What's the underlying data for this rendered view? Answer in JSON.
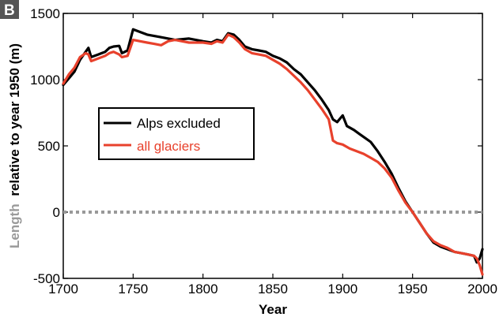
{
  "chart_data": {
    "type": "line",
    "panel_label": "B",
    "title": "",
    "xlabel": "Year",
    "ylabel_light": "Length",
    "ylabel_bold": "relative to year 1950 (m)",
    "xlim": [
      1700,
      2000
    ],
    "ylim": [
      -500,
      1500
    ],
    "xticks": [
      "1700",
      "1750",
      "1800",
      "1850",
      "1900",
      "1950",
      "2000"
    ],
    "yticks": [
      "-500",
      "0",
      "500",
      "1000",
      "1500"
    ],
    "xtick_values": [
      1700,
      1750,
      1800,
      1850,
      1900,
      1950,
      2000
    ],
    "ytick_values": [
      -500,
      0,
      500,
      1000,
      1500
    ],
    "reference_line": {
      "y": 0,
      "style": "dotted",
      "color": "#999999"
    },
    "legend_position": "upper-left",
    "series": [
      {
        "name": "Alps excluded",
        "color": "#000000",
        "points": [
          [
            1700,
            960
          ],
          [
            1704,
            1010
          ],
          [
            1708,
            1060
          ],
          [
            1712,
            1150
          ],
          [
            1716,
            1210
          ],
          [
            1718,
            1240
          ],
          [
            1720,
            1170
          ],
          [
            1725,
            1190
          ],
          [
            1730,
            1210
          ],
          [
            1733,
            1240
          ],
          [
            1736,
            1250
          ],
          [
            1740,
            1255
          ],
          [
            1742,
            1200
          ],
          [
            1746,
            1220
          ],
          [
            1750,
            1380
          ],
          [
            1760,
            1340
          ],
          [
            1770,
            1320
          ],
          [
            1780,
            1300
          ],
          [
            1790,
            1310
          ],
          [
            1800,
            1290
          ],
          [
            1806,
            1280
          ],
          [
            1810,
            1300
          ],
          [
            1814,
            1290
          ],
          [
            1818,
            1350
          ],
          [
            1822,
            1340
          ],
          [
            1826,
            1300
          ],
          [
            1830,
            1250
          ],
          [
            1835,
            1230
          ],
          [
            1840,
            1220
          ],
          [
            1845,
            1210
          ],
          [
            1850,
            1180
          ],
          [
            1855,
            1160
          ],
          [
            1860,
            1130
          ],
          [
            1865,
            1080
          ],
          [
            1870,
            1040
          ],
          [
            1875,
            980
          ],
          [
            1880,
            920
          ],
          [
            1885,
            850
          ],
          [
            1890,
            770
          ],
          [
            1893,
            700
          ],
          [
            1896,
            680
          ],
          [
            1900,
            730
          ],
          [
            1903,
            650
          ],
          [
            1908,
            620
          ],
          [
            1912,
            590
          ],
          [
            1916,
            560
          ],
          [
            1920,
            530
          ],
          [
            1925,
            460
          ],
          [
            1930,
            380
          ],
          [
            1935,
            290
          ],
          [
            1940,
            180
          ],
          [
            1945,
            80
          ],
          [
            1950,
            0
          ],
          [
            1955,
            -80
          ],
          [
            1960,
            -160
          ],
          [
            1965,
            -230
          ],
          [
            1970,
            -260
          ],
          [
            1975,
            -280
          ],
          [
            1980,
            -300
          ],
          [
            1985,
            -310
          ],
          [
            1990,
            -320
          ],
          [
            1994,
            -330
          ],
          [
            1996,
            -380
          ],
          [
            1998,
            -350
          ],
          [
            2000,
            -280
          ]
        ]
      },
      {
        "name": "all glaciers",
        "color": "#e8412c",
        "points": [
          [
            1700,
            970
          ],
          [
            1704,
            1040
          ],
          [
            1708,
            1090
          ],
          [
            1712,
            1170
          ],
          [
            1716,
            1200
          ],
          [
            1718,
            1190
          ],
          [
            1720,
            1140
          ],
          [
            1725,
            1160
          ],
          [
            1730,
            1180
          ],
          [
            1733,
            1200
          ],
          [
            1736,
            1210
          ],
          [
            1740,
            1190
          ],
          [
            1742,
            1170
          ],
          [
            1746,
            1180
          ],
          [
            1750,
            1300
          ],
          [
            1755,
            1290
          ],
          [
            1760,
            1280
          ],
          [
            1765,
            1270
          ],
          [
            1770,
            1260
          ],
          [
            1775,
            1290
          ],
          [
            1780,
            1300
          ],
          [
            1790,
            1280
          ],
          [
            1800,
            1280
          ],
          [
            1806,
            1270
          ],
          [
            1810,
            1290
          ],
          [
            1814,
            1280
          ],
          [
            1818,
            1340
          ],
          [
            1822,
            1320
          ],
          [
            1826,
            1280
          ],
          [
            1830,
            1230
          ],
          [
            1835,
            1200
          ],
          [
            1840,
            1190
          ],
          [
            1845,
            1180
          ],
          [
            1850,
            1150
          ],
          [
            1855,
            1120
          ],
          [
            1860,
            1080
          ],
          [
            1865,
            1030
          ],
          [
            1870,
            980
          ],
          [
            1875,
            920
          ],
          [
            1880,
            850
          ],
          [
            1885,
            780
          ],
          [
            1890,
            700
          ],
          [
            1893,
            540
          ],
          [
            1896,
            520
          ],
          [
            1900,
            510
          ],
          [
            1905,
            480
          ],
          [
            1910,
            460
          ],
          [
            1915,
            440
          ],
          [
            1920,
            410
          ],
          [
            1925,
            380
          ],
          [
            1930,
            330
          ],
          [
            1935,
            260
          ],
          [
            1940,
            160
          ],
          [
            1945,
            70
          ],
          [
            1950,
            0
          ],
          [
            1955,
            -80
          ],
          [
            1960,
            -160
          ],
          [
            1965,
            -220
          ],
          [
            1970,
            -250
          ],
          [
            1975,
            -270
          ],
          [
            1980,
            -300
          ],
          [
            1985,
            -310
          ],
          [
            1990,
            -320
          ],
          [
            1994,
            -330
          ],
          [
            1996,
            -350
          ],
          [
            1998,
            -400
          ],
          [
            2000,
            -470
          ]
        ]
      }
    ]
  }
}
